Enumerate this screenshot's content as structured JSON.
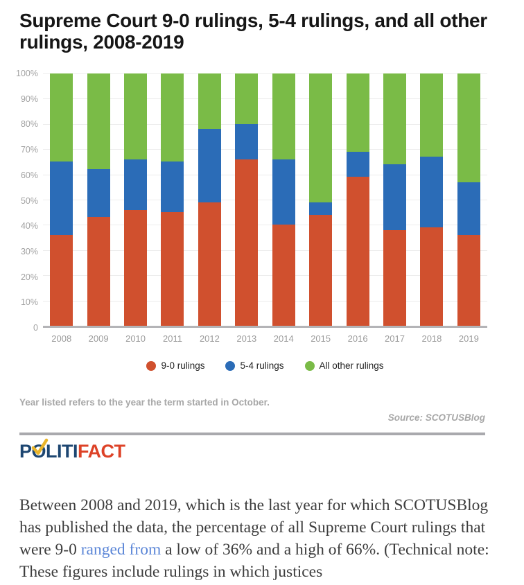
{
  "title": "Supreme Court 9-0 rulings, 5-4 rulings, and all other rulings, 2008-2019",
  "chart_data": {
    "type": "bar",
    "stacked": true,
    "title": "Supreme Court 9-0 rulings, 5-4 rulings, and all other rulings, 2008-2019",
    "categories": [
      "2008",
      "2009",
      "2010",
      "2011",
      "2012",
      "2013",
      "2014",
      "2015",
      "2016",
      "2017",
      "2018",
      "2019"
    ],
    "series": [
      {
        "name": "9-0 rulings",
        "color": "#d0502e",
        "values": [
          36,
          43,
          46,
          45,
          49,
          66,
          40,
          44,
          59,
          38,
          39,
          36
        ]
      },
      {
        "name": "5-4 rulings",
        "color": "#2b6cb7",
        "values": [
          29,
          19,
          20,
          20,
          29,
          14,
          26,
          5,
          10,
          26,
          28,
          21
        ]
      },
      {
        "name": "All other rulings",
        "color": "#7abb47",
        "values": [
          35,
          38,
          34,
          35,
          22,
          20,
          34,
          51,
          31,
          36,
          33,
          43
        ]
      }
    ],
    "xlabel": "",
    "ylabel": "",
    "ylim": [
      0,
      100
    ],
    "y_ticks": [
      "100%",
      "90%",
      "80%",
      "70%",
      "60%",
      "50%",
      "40%",
      "30%",
      "20%",
      "10%",
      "0"
    ],
    "grid": true,
    "legend_position": "bottom",
    "footnote": "Year listed refers to the year the term started in October.",
    "source": "Source: SCOTUSBlog"
  },
  "logo": {
    "p": "P",
    "o": "O",
    "liti": "LITI",
    "fact": "FACT"
  },
  "article": {
    "text_before": "Between 2008 and 2019, which is the last year for which SCOTUSBlog has published the data, the percentage of all Supreme Court rulings that were 9-0 ",
    "link_text": "ranged from",
    "text_after": " a low of 36% and a high of 66%. (Technical note: These figures include rulings in which justices"
  },
  "colors": {
    "title_text": "#161616",
    "axis_text": "#a2a2a2",
    "grid": "#ececec",
    "axis_line": "#b4b4b7",
    "note_text": "#a7a7a7",
    "body_text": "#3d3d3d",
    "link": "#5b86d7",
    "logo_navy": "#1d4671",
    "logo_red": "#dd4227",
    "logo_gold": "#eab52a"
  }
}
